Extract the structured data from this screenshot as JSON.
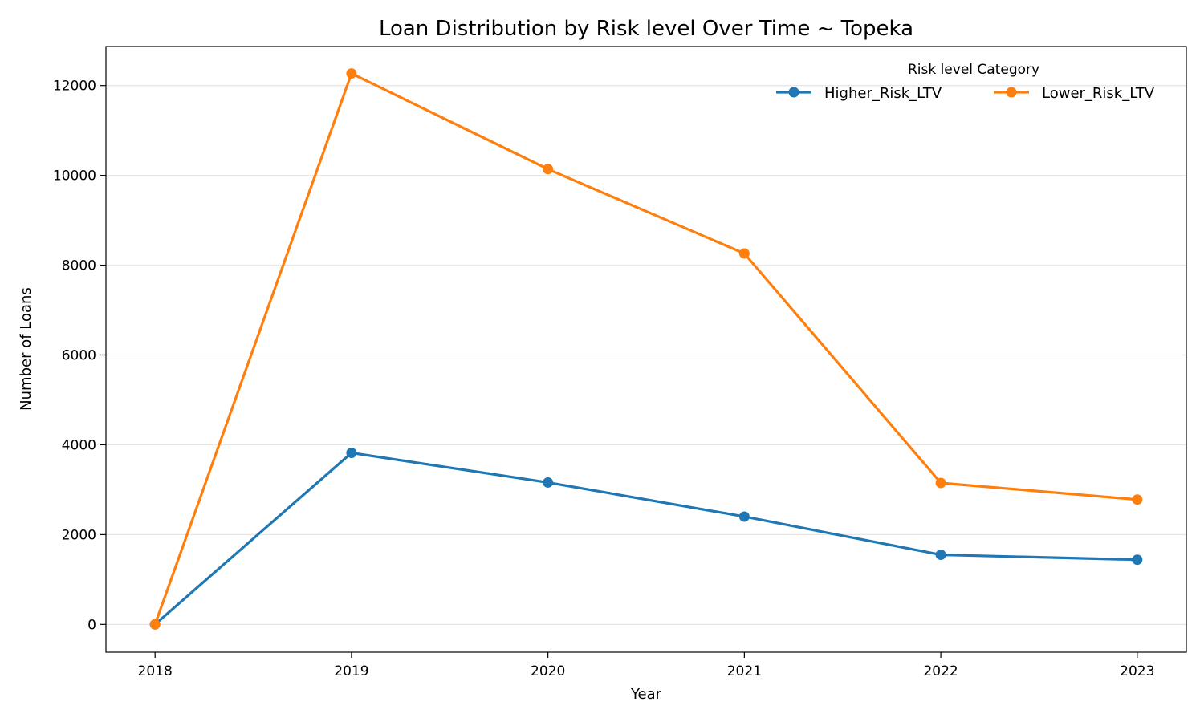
{
  "chart_data": {
    "type": "line",
    "title": "Loan Distribution by Risk level Over Time ~ Topeka",
    "xlabel": "Year",
    "ylabel": "Number of Loans",
    "x": [
      2018,
      2019,
      2020,
      2021,
      2022,
      2023
    ],
    "x_tick_labels": [
      "2018",
      "2019",
      "2020",
      "2021",
      "2022",
      "2023"
    ],
    "xlim": [
      2017.75,
      2023.25
    ],
    "ylim": [
      -620,
      12870
    ],
    "y_ticks": [
      0,
      2000,
      4000,
      6000,
      8000,
      10000,
      12000
    ],
    "y_tick_labels": [
      "0",
      "2000",
      "4000",
      "6000",
      "8000",
      "10000",
      "12000"
    ],
    "grid": "horizontal",
    "legend": {
      "title": "Risk level Category",
      "placement": "top-right"
    },
    "series": [
      {
        "name": "Higher_Risk_LTV",
        "color": "#1f77b4",
        "values": [
          0,
          3820,
          3160,
          2400,
          1550,
          1440
        ]
      },
      {
        "name": "Lower_Risk_LTV",
        "color": "#ff7f0e",
        "values": [
          0,
          12270,
          10140,
          8260,
          3150,
          2780
        ]
      }
    ]
  }
}
